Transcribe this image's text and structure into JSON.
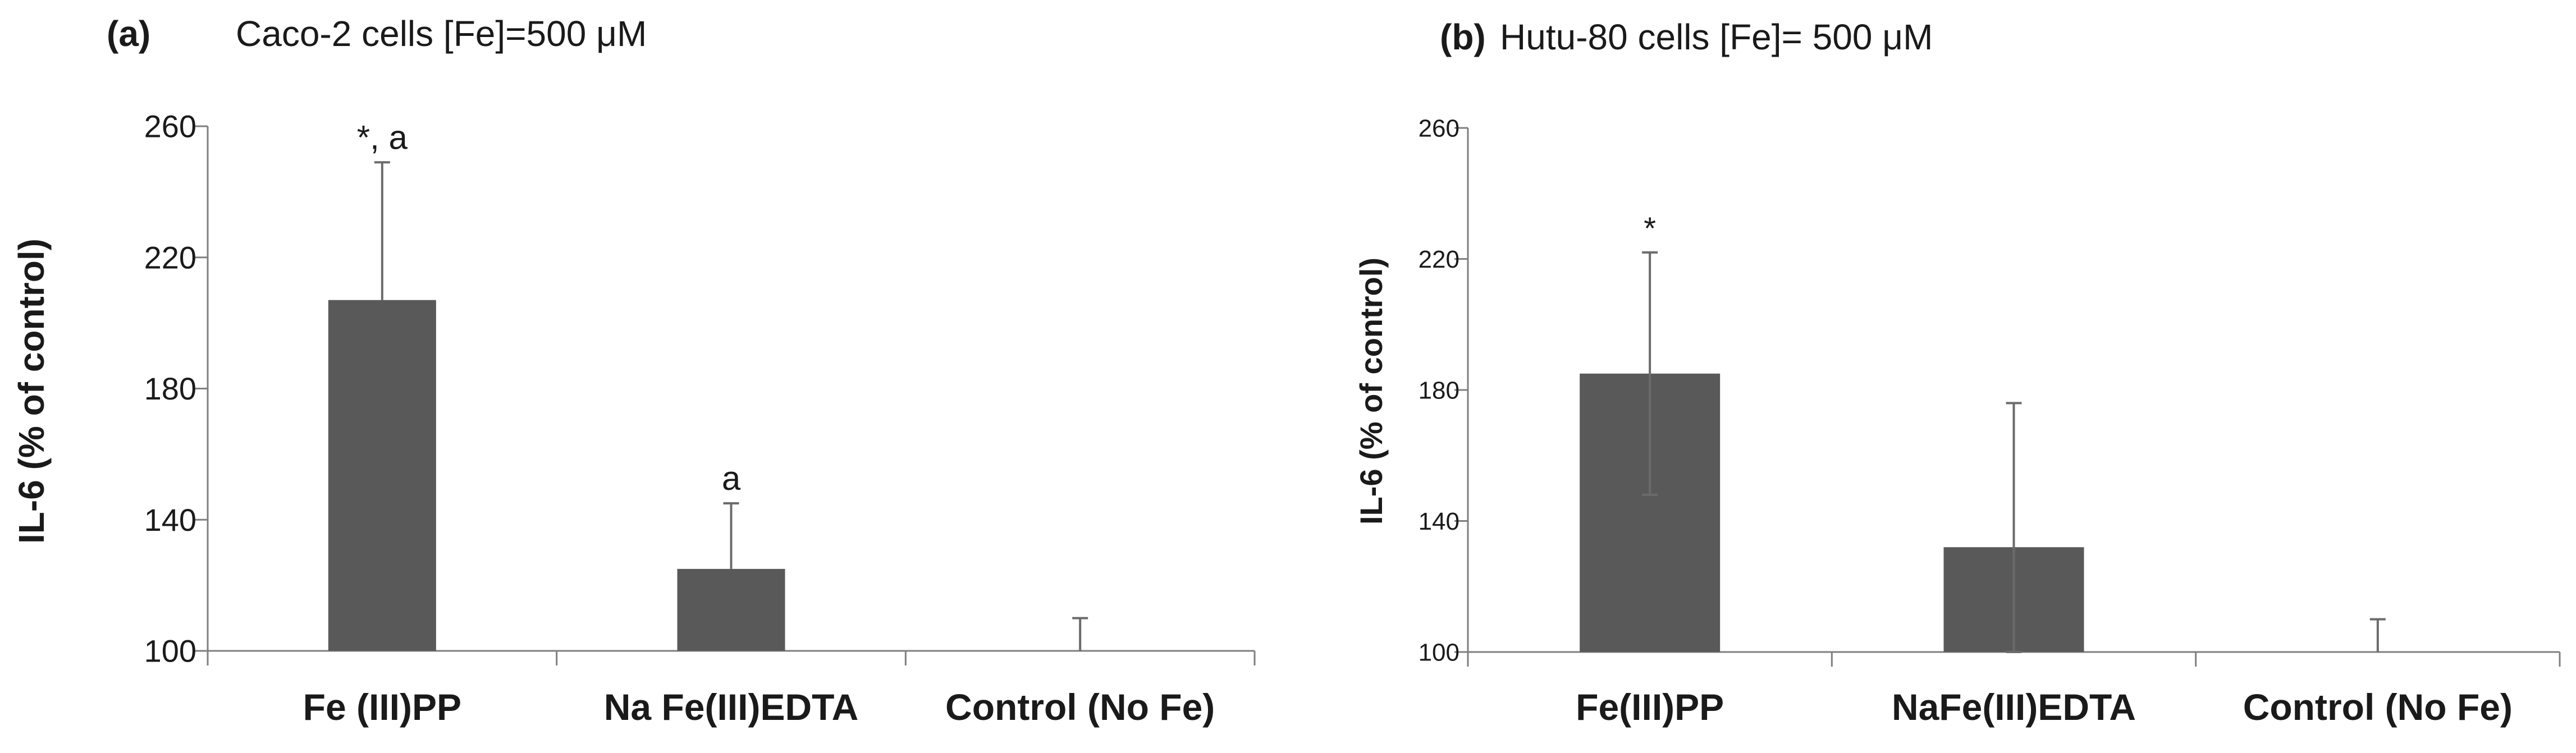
{
  "chart_data": [
    {
      "type": "bar",
      "panel_label": "(a)",
      "title": "Caco-2 cells [Fe]=500 μM",
      "ylabel": "IL-6 (% of control)",
      "xlabel": "",
      "ylim": [
        100,
        260
      ],
      "yticks": [
        100,
        140,
        180,
        220,
        260
      ],
      "categories": [
        "Fe (III)PP",
        "Na Fe(III)EDTA",
        "Control (No Fe)"
      ],
      "values": [
        207,
        125,
        100
      ],
      "error_upper": [
        249,
        145,
        110
      ],
      "error_lower": [
        null,
        null,
        null
      ],
      "annotations": [
        "*, a",
        "a",
        ""
      ],
      "bar_color": "#595959",
      "grid": false,
      "legend": "none"
    },
    {
      "type": "bar",
      "panel_label": "(b)",
      "title": "Hutu-80 cells [Fe]= 500 μM",
      "ylabel": "IL-6 (% of control)",
      "xlabel": "",
      "ylim": [
        100,
        260
      ],
      "yticks": [
        100,
        140,
        180,
        220,
        260
      ],
      "categories": [
        "Fe(III)PP",
        "NaFe(III)EDTA",
        "Control (No Fe)"
      ],
      "values": [
        185,
        132,
        100
      ],
      "error_upper": [
        222,
        176,
        110
      ],
      "error_lower": [
        148,
        100,
        null
      ],
      "annotations": [
        "*",
        "",
        ""
      ],
      "bar_color": "#595959",
      "grid": false,
      "legend": "none"
    }
  ]
}
